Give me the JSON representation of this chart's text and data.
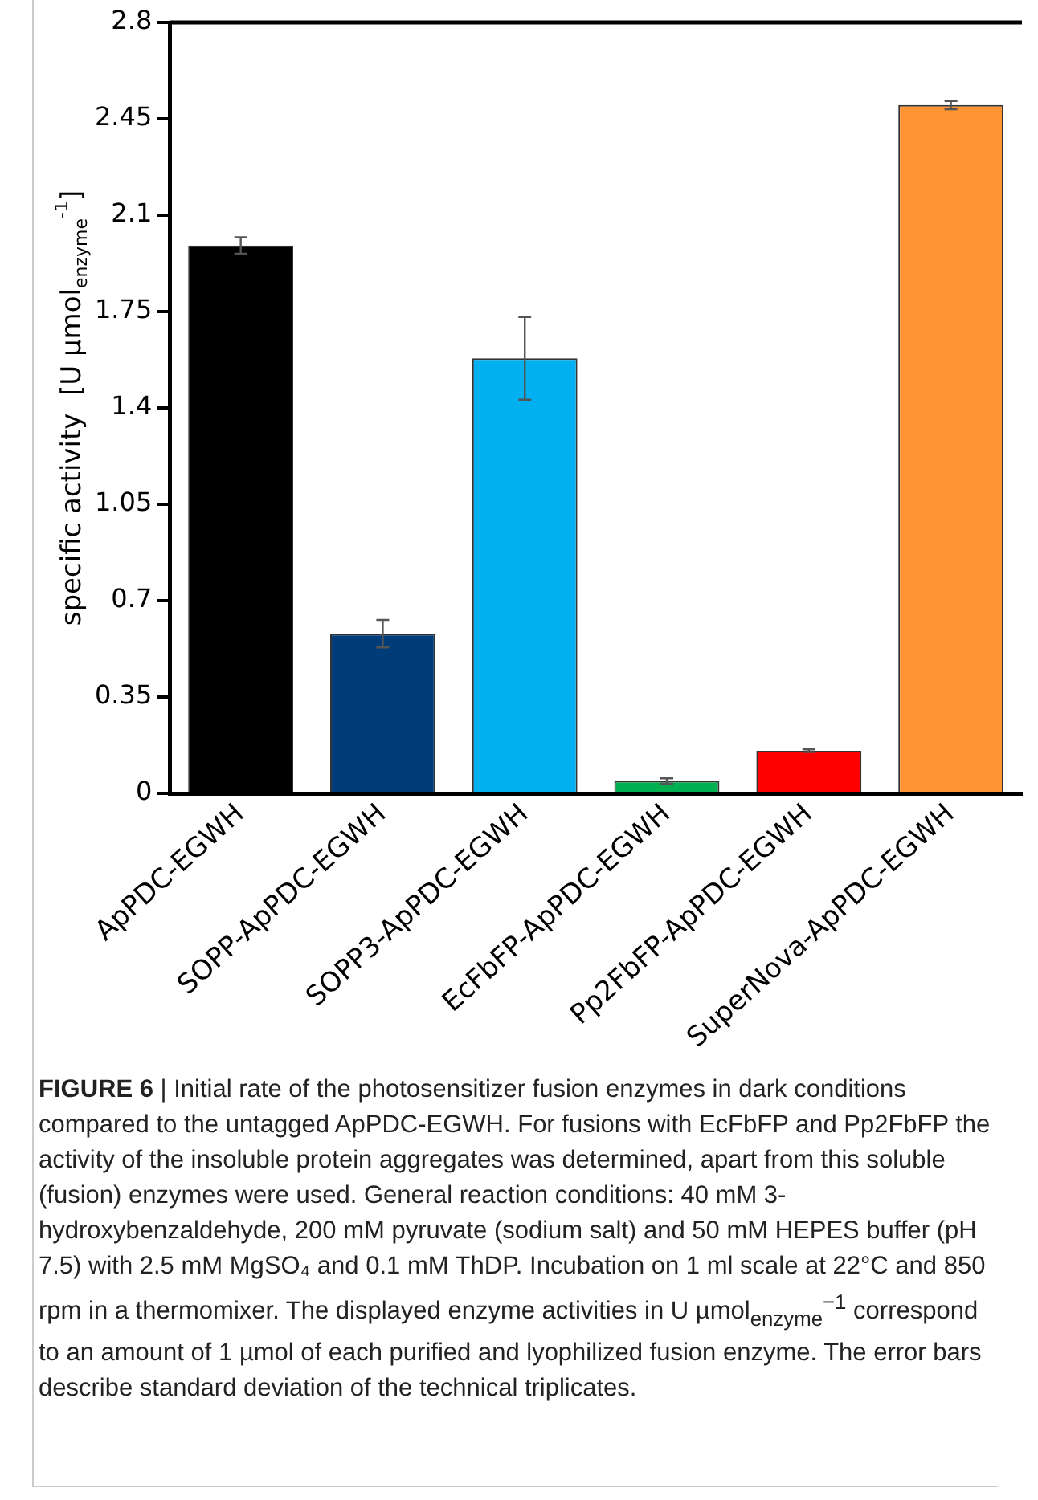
{
  "chart_data": {
    "type": "bar",
    "ylabel": "specific activity  [U µmol$_{enzyme}$$^{-1}$]",
    "categories": [
      "ApPDC-EGWH",
      "SOPP-ApPDC-EGWH",
      "SOPP3-ApPDC-EGWH",
      "EcFbFP-ApPDC-EGWH",
      "Pp2FbFP-ApPDC-EGWH",
      "SuperNova-ApPDC-EGWH"
    ],
    "values": [
      1.99,
      0.58,
      1.58,
      0.045,
      0.155,
      2.5
    ],
    "errors": [
      0.03,
      0.05,
      0.15,
      0.01,
      0.005,
      0.015
    ],
    "colors": [
      "#000000",
      "#003b7a",
      "#00b0f0",
      "#00b050",
      "#ff0000",
      "#ff9433"
    ],
    "ylim": [
      0,
      2.8
    ],
    "yticks": [
      0,
      0.35,
      0.7,
      1.05,
      1.4,
      1.75,
      2.1,
      2.45,
      2.8
    ],
    "grid": false,
    "legend": false,
    "annotations": [
      "FIGURE 6 | Initial rate of the photosensitizer fusion enzymes in dark conditions compared to the untagged ApPDC-EGWH. For fusions with EcFbFP and Pp2FbFP the activity of the insoluble protein aggregates was determined, apart from this soluble (fusion) enzymes were used. General reaction conditions: 40 mM 3-hydroxybenzaldehyde, 200 mM pyruvate (sodium salt) and 50 mM HEPES buffer (pH 7.5) with 2.5 mM MgSO₄ and 0.1 mM ThDP. Incubation on 1 ml scale at 22°C and 850 rpm in a thermomixer. The displayed enzyme activities in U µmol$_{enzyme}$$^{−1}$ correspond to an amount of 1 µmol of each purified and lyophilized fusion enzyme. The error bars describe standard deviation of the technical triplicates."
    ]
  }
}
